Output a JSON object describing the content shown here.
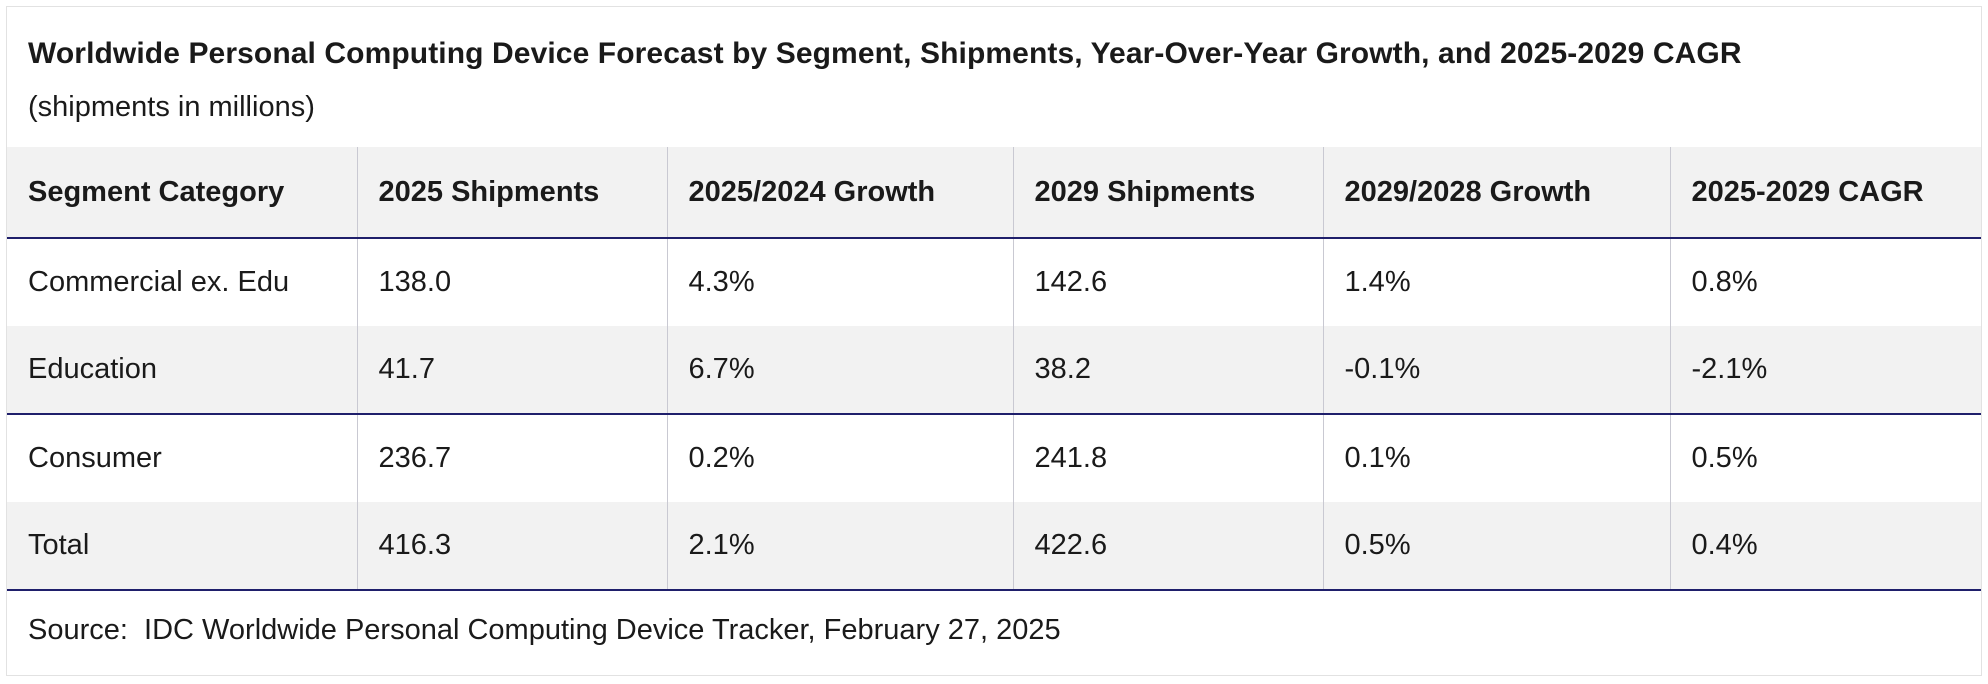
{
  "title": "Worldwide Personal Computing Device Forecast by Segment, Shipments, Year-Over-Year Growth, and 2025-2029 CAGR",
  "subtitle": "(shipments in millions)",
  "table": {
    "headers": [
      "Segment Category",
      "2025 Shipments",
      "2025/2024 Growth",
      "2029 Shipments",
      "2029/2028 Growth",
      "2025-2029 CAGR"
    ],
    "rows": [
      [
        "Commercial ex. Edu",
        "138.0",
        "4.3%",
        "142.6",
        "1.4%",
        "0.8%"
      ],
      [
        "Education",
        "41.7",
        "6.7%",
        "38.2",
        "-0.1%",
        "-2.1%"
      ],
      [
        "Consumer",
        "236.7",
        "0.2%",
        "241.8",
        "0.1%",
        "0.5%"
      ],
      [
        "Total",
        "416.3",
        "2.1%",
        "422.6",
        "0.5%",
        "0.4%"
      ]
    ]
  },
  "source": "Source:  IDC Worldwide Personal Computing Device Tracker, February 27, 2025",
  "colors": {
    "header_bg": "#f2f2f2",
    "stripe_bg": "#f2f2f2",
    "rule": "#1f1f6b",
    "text": "#1a1a1a"
  }
}
